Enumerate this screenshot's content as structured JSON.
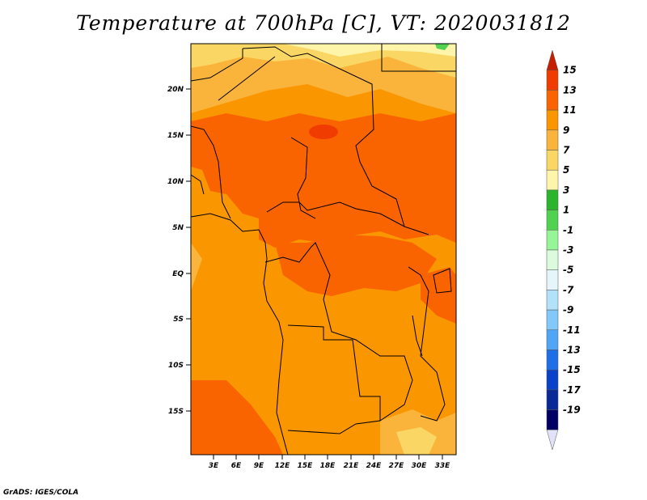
{
  "title": "Temperature at 700hPa [C], VT: 2020031812",
  "footer": "GrADS: IGES/COLA",
  "map": {
    "lat_labels": [
      "20N",
      "15N",
      "10N",
      "5N",
      "EQ",
      "5S",
      "10S",
      "15S"
    ],
    "lon_labels": [
      "3E",
      "6E",
      "9E",
      "12E",
      "15E",
      "18E",
      "21E",
      "24E",
      "27E",
      "30E",
      "33E"
    ]
  },
  "colorbar": {
    "labels": [
      "15",
      "13",
      "11",
      "9",
      "7",
      "5",
      "3",
      "1",
      "-1",
      "-3",
      "-5",
      "-7",
      "-9",
      "-11",
      "-13",
      "-15",
      "-17",
      "-19"
    ],
    "colors": [
      "#c81e00",
      "#f03c00",
      "#fa6400",
      "#fa9600",
      "#fab43c",
      "#fad764",
      "#fff5aa",
      "#2db42d",
      "#50d250",
      "#96f596",
      "#dcfadc",
      "#e6f5fa",
      "#b4e1fa",
      "#82c8fa",
      "#50a5f5",
      "#1e6ee6",
      "#0a41c8",
      "#0a2896",
      "#000064",
      "#e1e1fa"
    ]
  }
}
